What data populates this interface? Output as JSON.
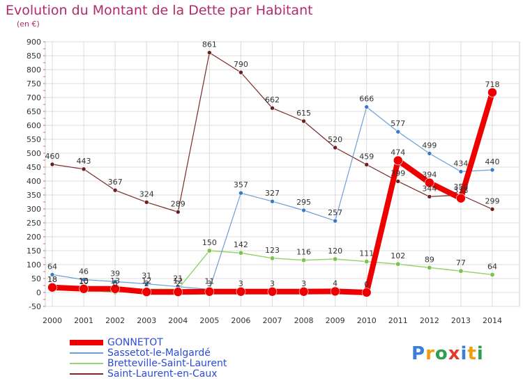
{
  "title": "Evolution du Montant de la Dette par Habitant",
  "subtitle": "(en €)",
  "logo": {
    "text": "Proxiti",
    "letters": [
      "P",
      "r",
      "o",
      "x",
      "i",
      "t",
      "i"
    ],
    "colors": [
      "#3b7fd9",
      "#f39c12",
      "#2e9e4f",
      "#e23b2e",
      "#3b7fd9",
      "#f39c12",
      "#2e9e4f"
    ]
  },
  "chart_data": {
    "type": "line",
    "x": [
      "2000",
      "2001",
      "2002",
      "2003",
      "2004",
      "2005",
      "2006",
      "2007",
      "2008",
      "2009",
      "2010",
      "2011",
      "2012",
      "2013",
      "2014"
    ],
    "ylim": [
      -50,
      900
    ],
    "yticks": [
      -50,
      0,
      50,
      100,
      150,
      200,
      250,
      300,
      350,
      400,
      450,
      500,
      550,
      600,
      650,
      700,
      750,
      800,
      850,
      900
    ],
    "grid": true,
    "legend_position": "bottom-left",
    "series": [
      {
        "name": "Saint-Laurent-en-Caux",
        "color": "#7a2a2a",
        "marker_color": "#6b1f1f",
        "stroke_width": 1.2,
        "marker_radius": 3,
        "values": [
          460,
          443,
          367,
          324,
          289,
          861,
          790,
          662,
          615,
          520,
          459,
          399,
          344,
          350,
          299
        ],
        "labels": [
          "460",
          "443",
          "367",
          "324",
          "289",
          "861",
          "790",
          "662",
          "615",
          "520",
          "459",
          "399",
          "344",
          "350",
          "299"
        ]
      },
      {
        "name": "Bretteville-Saint-Laurent",
        "color": "#98d36e",
        "marker_color": "#7cc24f",
        "stroke_width": 1.5,
        "marker_radius": 3.2,
        "values": [
          18,
          10,
          0,
          12,
          12,
          150,
          142,
          123,
          116,
          120,
          111,
          102,
          89,
          77,
          64
        ],
        "labels": [
          "18",
          "10",
          "0",
          "12",
          "12",
          "150",
          "142",
          "123",
          "116",
          "120",
          "111",
          "102",
          "89",
          "77",
          "64"
        ]
      },
      {
        "name": "Sassetot-le-Malgardé",
        "color": "#6a9fd4",
        "marker_color": "#3a7cc4",
        "stroke_width": 1.2,
        "marker_radius": 3,
        "values": [
          64,
          46,
          39,
          31,
          21,
          11,
          357,
          327,
          295,
          257,
          666,
          577,
          499,
          434,
          440
        ],
        "labels": [
          "64",
          "46",
          "39",
          "31",
          "21",
          "11",
          "357",
          "327",
          "295",
          "257",
          "666",
          "577",
          "499",
          "434",
          "440"
        ]
      },
      {
        "name": "GONNETOT",
        "color": "#ee0000",
        "marker_color": "#ee0000",
        "stroke_width": 8,
        "marker_radius": 6.5,
        "values": [
          18,
          13,
          13,
          2,
          2,
          3,
          3,
          3,
          3,
          4,
          0,
          474,
          394,
          338,
          718
        ],
        "labels": [
          "18",
          "13",
          "13",
          "2",
          "2",
          "3",
          "3",
          "3",
          "3",
          "4",
          "0",
          "474",
          "394",
          "338",
          "718"
        ]
      }
    ],
    "legend": [
      "GONNETOT",
      "Sassetot-le-Malgardé",
      "Bretteville-Saint-Laurent",
      "Saint-Laurent-en-Caux"
    ]
  }
}
